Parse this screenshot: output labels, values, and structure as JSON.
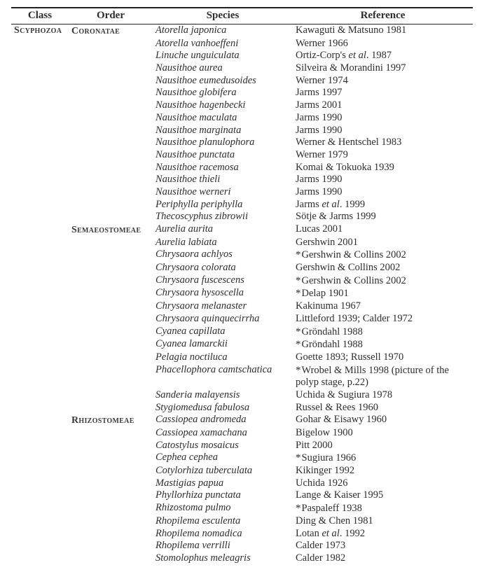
{
  "headers": {
    "class": "Class",
    "order": "Order",
    "species": "Species",
    "reference": "Reference"
  },
  "class": "Scyphozoa",
  "orders": [
    {
      "name": "Coronatae",
      "rows": [
        {
          "species": "Atorella japonica",
          "ref": "Kawaguti & Matsuno 1981",
          "star": false
        },
        {
          "species": "Atorella vanhoeffeni",
          "ref": "Werner 1966",
          "star": false
        },
        {
          "species": "Linuche unguiculata",
          "ref_html": "Ortiz-Corp's <em class='jnl'>et al</em>. 1987",
          "star": false
        },
        {
          "species": "Nausithoe aurea",
          "ref": "Silveira & Morandini 1997",
          "star": false
        },
        {
          "species": "Nausithoe eumedusoides",
          "ref": "Werner 1974",
          "star": false
        },
        {
          "species": "Nausithoe globifera",
          "ref": "Jarms 1997",
          "star": false
        },
        {
          "species": "Nausithoe hagenbecki",
          "ref": "Jarms 2001",
          "star": false
        },
        {
          "species": "Nausithoe maculata",
          "ref": "Jarms 1990",
          "star": false
        },
        {
          "species": "Nausithoe marginata",
          "ref": "Jarms 1990",
          "star": false
        },
        {
          "species": "Nausithoe planulophora",
          "ref": "Werner & Hentschel 1983",
          "star": false
        },
        {
          "species": "Nausithoe punctata",
          "ref": "Werner 1979",
          "star": false
        },
        {
          "species": "Nausithoe racemosa",
          "ref": "Komai & Tokuoka 1939",
          "star": false
        },
        {
          "species": "Nausithoe thieli",
          "ref": "Jarms 1990",
          "star": false
        },
        {
          "species": "Nausithoe werneri",
          "ref": "Jarms 1990",
          "star": false
        },
        {
          "species": "Periphylla periphylla",
          "ref_html": "Jarms <em class='jnl'>et al</em>. 1999",
          "star": false
        },
        {
          "species": "Thecoscyphus zibrowii",
          "ref": "Sötje & Jarms 1999",
          "star": false
        }
      ]
    },
    {
      "name": "Semaeostomeae",
      "rows": [
        {
          "species": "Aurelia aurita",
          "ref": "Lucas 2001",
          "star": false
        },
        {
          "species": "Aurelia labiata",
          "ref": "Gershwin 2001",
          "star": false
        },
        {
          "species": "Chrysaora achlyos",
          "ref": "Gershwin & Collins 2002",
          "star": true
        },
        {
          "species": "Chrysaora colorata",
          "ref": "Gershwin & Collins 2002",
          "star": false
        },
        {
          "species": "Chrysaora fuscescens",
          "ref": "Gershwin & Collins 2002",
          "star": true
        },
        {
          "species": "Chrysaora hysoscella",
          "ref": "Delap 1901",
          "star": true
        },
        {
          "species": "Chrysaora melanaster",
          "ref": "Kakinuma 1967",
          "star": false
        },
        {
          "species": "Chrysaora quinquecirrha",
          "ref": "Littleford 1939; Calder 1972",
          "star": false
        },
        {
          "species": "Cyanea capillata",
          "ref": "Gröndahl 1988",
          "star": true
        },
        {
          "species": "Cyanea lamarckii",
          "ref": "Gröndahl 1988",
          "star": true
        },
        {
          "species": "Pelagia noctiluca",
          "ref": "Goette 1893; Russell 1970",
          "star": false
        },
        {
          "species": "Phacellophora camtschatica",
          "ref": "Wrobel & Mills 1998 (picture of the polyp stage, p.22)",
          "star": true
        },
        {
          "species": "Sanderia malayensis",
          "ref": "Uchida & Sugiura 1978",
          "star": false
        },
        {
          "species": "Stygiomedusa fabulosa",
          "ref": "Russel & Rees 1960",
          "star": false
        }
      ]
    },
    {
      "name": "Rhizostomeae",
      "rows": [
        {
          "species": "Cassiopea andromeda",
          "ref": "Gohar & Eisawy 1960",
          "star": false
        },
        {
          "species": "Cassiopea xamachana",
          "ref": "Bigelow 1900",
          "star": false
        },
        {
          "species": "Catostylus mosaicus",
          "ref": "Pitt 2000",
          "star": false
        },
        {
          "species": "Cephea cephea",
          "ref": "Sugiura 1966",
          "star": true
        },
        {
          "species": "Cotylorhiza tuberculata",
          "ref": "Kikinger 1992",
          "star": false
        },
        {
          "species": "Mastigias papua",
          "ref": "Uchida 1926",
          "star": false
        },
        {
          "species": "Phyllorhiza punctata",
          "ref": "Lange & Kaiser 1995",
          "star": false
        },
        {
          "species": "Rhizostoma pulmo",
          "ref": "Paspaleff 1938",
          "star": true
        },
        {
          "species": "Rhopilema esculenta",
          "ref": "Ding & Chen 1981",
          "star": false
        },
        {
          "species": "Rhopilema nomadica",
          "ref_html": "Lotan <em class='jnl'>et al</em>. 1992",
          "star": false
        },
        {
          "species": "Rhopilema verrilli",
          "ref": "Calder 1973",
          "star": false
        },
        {
          "species": "Stomolophus meleagris",
          "ref": "Calder 1982",
          "star": false
        }
      ]
    }
  ]
}
